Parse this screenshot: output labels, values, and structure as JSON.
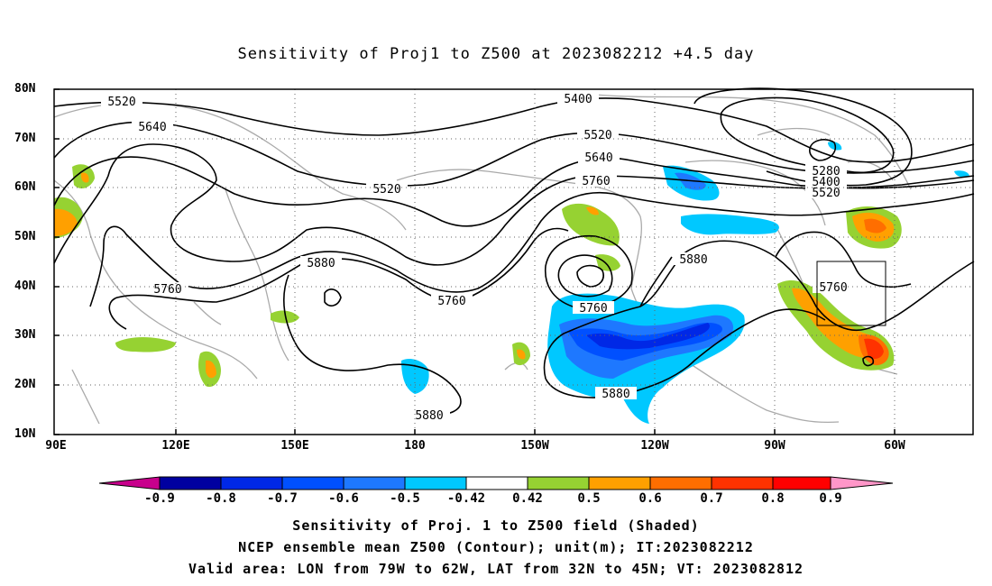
{
  "title": "Sensitivity of Proj1 to Z500 at 2023082212 +4.5 day",
  "axes": {
    "lat_labels": [
      "80N",
      "70N",
      "60N",
      "50N",
      "40N",
      "30N",
      "20N",
      "10N"
    ],
    "lon_labels": [
      "90E",
      "120E",
      "150E",
      "180",
      "150W",
      "120W",
      "90W",
      "60W"
    ]
  },
  "contour_labels": [
    "5520",
    "5640",
    "5520",
    "5400",
    "5520",
    "5640",
    "5760",
    "5280",
    "5400",
    "5520",
    "5880",
    "5760",
    "5760",
    "5760",
    "5880",
    "5760",
    "5880",
    "5880"
  ],
  "colorbar": {
    "labels": [
      "-0.9",
      "-0.8",
      "-0.7",
      "-0.6",
      "-0.5",
      "-0.42",
      "0.42",
      "0.5",
      "0.6",
      "0.7",
      "0.8",
      "0.9"
    ],
    "colors": [
      "#c8008c",
      "#0000a0",
      "#0028e6",
      "#0050ff",
      "#1e78ff",
      "#00c8ff",
      "#ffffff",
      "#96d232",
      "#ffa000",
      "#ff6e00",
      "#ff3200",
      "#ff0000",
      "#ff96c8"
    ]
  },
  "captions": [
    "Sensitivity of Proj. 1 to Z500 field (Shaded)",
    "NCEP ensemble mean Z500 (Contour); unit(m); IT:2023082212",
    "Valid area: LON from 79W to 62W, LAT from 32N to 45N; VT: 2023082812"
  ]
}
